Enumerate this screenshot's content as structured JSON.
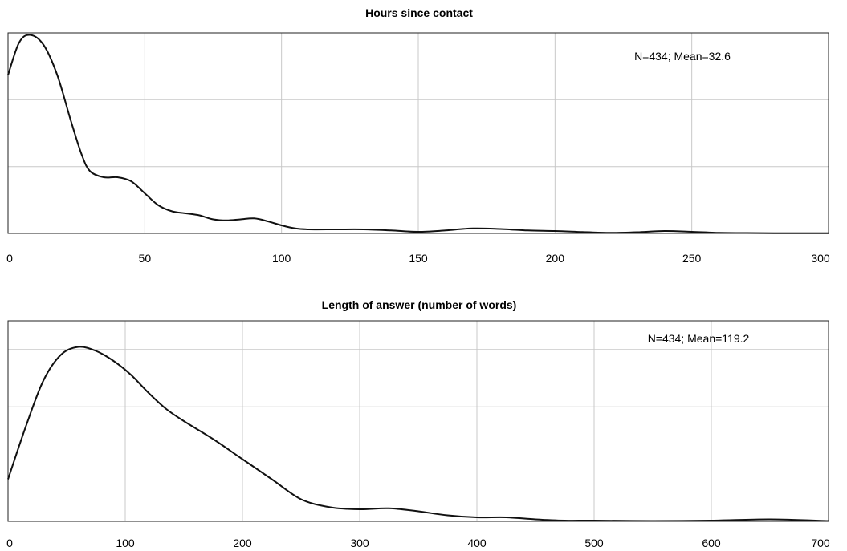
{
  "chart_data": [
    {
      "type": "line",
      "title": "Hours since contact",
      "annotation": "N=434; Mean=32.6",
      "xlim": [
        0,
        300
      ],
      "ylim": [
        0,
        1
      ],
      "xticks": [
        0,
        50,
        100,
        150,
        200,
        250,
        300
      ],
      "ygrid_levels": [
        0.333,
        0.667
      ],
      "grid": true,
      "series": [
        {
          "x": [
            0,
            4,
            8,
            13,
            18,
            23,
            27,
            30,
            35,
            40,
            45,
            50,
            55,
            60,
            65,
            70,
            75,
            80,
            85,
            90,
            95,
            100,
            105,
            110,
            120,
            130,
            140,
            150,
            160,
            170,
            180,
            190,
            200,
            210,
            220,
            230,
            240,
            250,
            260,
            270,
            280,
            290,
            300
          ],
          "y": [
            0.79,
            0.95,
            0.99,
            0.94,
            0.79,
            0.56,
            0.39,
            0.31,
            0.28,
            0.28,
            0.26,
            0.2,
            0.14,
            0.11,
            0.1,
            0.09,
            0.07,
            0.065,
            0.07,
            0.075,
            0.06,
            0.04,
            0.025,
            0.02,
            0.02,
            0.02,
            0.015,
            0.008,
            0.015,
            0.025,
            0.022,
            0.015,
            0.012,
            0.007,
            0.003,
            0.006,
            0.012,
            0.008,
            0.003,
            0.002,
            0.001,
            0.001,
            0.001
          ]
        }
      ]
    },
    {
      "type": "line",
      "title": "Length of answer (number of words)",
      "annotation": "N=434; Mean=119.2",
      "xlim": [
        0,
        700
      ],
      "ylim": [
        0,
        1
      ],
      "xticks": [
        0,
        100,
        200,
        300,
        400,
        500,
        600,
        700
      ],
      "ygrid_levels": [
        0.286,
        0.571,
        0.857
      ],
      "grid": true,
      "series": [
        {
          "x": [
            0,
            15,
            30,
            45,
            60,
            75,
            90,
            105,
            120,
            135,
            150,
            175,
            200,
            225,
            250,
            275,
            300,
            325,
            350,
            375,
            400,
            425,
            450,
            475,
            500,
            550,
            600,
            650,
            700
          ],
          "y": [
            0.21,
            0.47,
            0.7,
            0.83,
            0.87,
            0.85,
            0.8,
            0.73,
            0.64,
            0.56,
            0.5,
            0.41,
            0.31,
            0.21,
            0.11,
            0.07,
            0.06,
            0.065,
            0.05,
            0.03,
            0.02,
            0.02,
            0.01,
            0.004,
            0.004,
            0.002,
            0.004,
            0.01,
            0.002
          ]
        }
      ]
    }
  ]
}
